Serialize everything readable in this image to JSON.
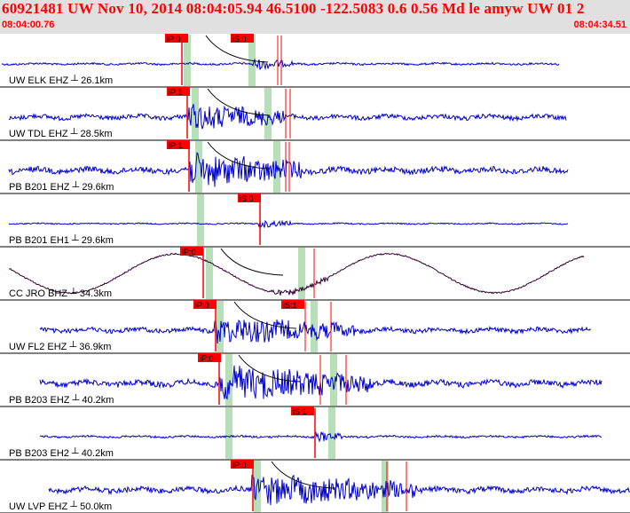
{
  "header": {
    "title": "60921481 UW Nov 10, 2014 08:04:05.94    46.5100 -122.5083  0.6 0.56 Md le amyw UW 01   2",
    "time_start": "08:04:00.76",
    "time_end": "08:04:34.51"
  },
  "colors": {
    "header_bg": "#e0e0e0",
    "header_text": "#ff0000",
    "trace_blue": "#0000cc",
    "trace_dark": "#330033",
    "pick_red": "#ff0000",
    "window_green": "#b8e0b8"
  },
  "traces": [
    {
      "label": "UW ELK EHZ",
      "dist": "26.1km",
      "picks": [
        "iP:0",
        "iS:0"
      ]
    },
    {
      "label": "UW TDL EHZ",
      "dist": "28.5km",
      "picks": [
        "iP:1"
      ]
    },
    {
      "label": "PB B201 EHZ",
      "dist": "29.6km",
      "picks": [
        "iP:1"
      ]
    },
    {
      "label": "PB B201 EH1",
      "dist": "29.6km",
      "picks": [
        "iS:0"
      ]
    },
    {
      "label": "CC JRO BHZ",
      "dist": "34.3km",
      "picks": [
        "iP:0"
      ]
    },
    {
      "label": "UW FL2 EHZ",
      "dist": "36.9km",
      "picks": [
        "iP:0",
        "iS:1"
      ]
    },
    {
      "label": "PB B203 EHZ",
      "dist": "40.2km",
      "picks": [
        "iP:0"
      ]
    },
    {
      "label": "PB B203 EH2",
      "dist": "40.2km",
      "picks": [
        "iS:1"
      ]
    },
    {
      "label": "UW LVP EHZ",
      "dist": "50.0km",
      "picks": [
        "iP:0"
      ]
    }
  ]
}
